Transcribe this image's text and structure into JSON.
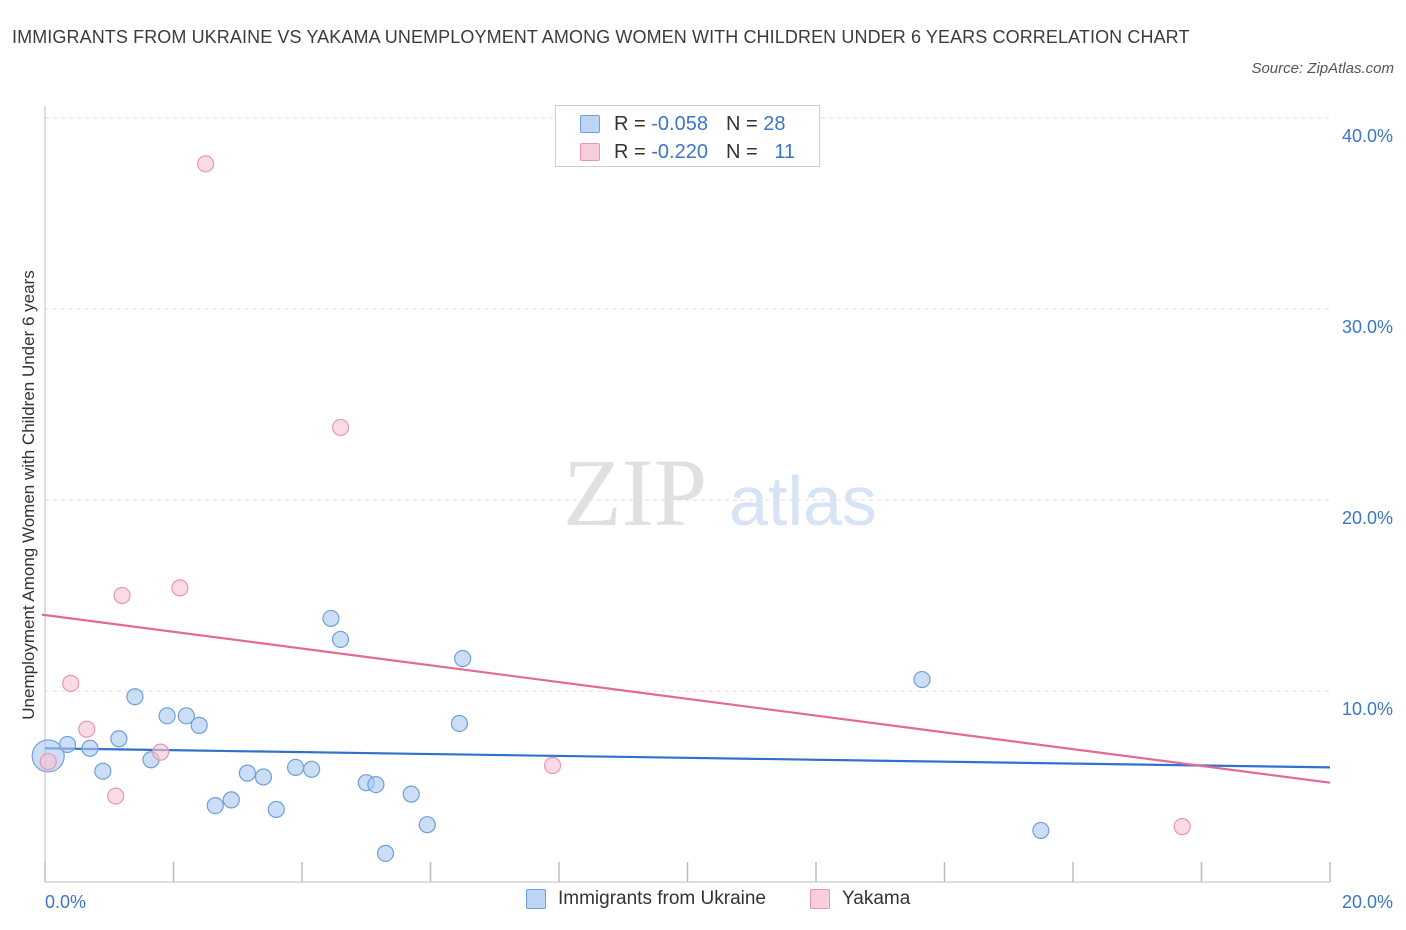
{
  "title": "IMMIGRANTS FROM UKRAINE VS YAKAMA UNEMPLOYMENT AMONG WOMEN WITH CHILDREN UNDER 6 YEARS CORRELATION CHART",
  "source": "Source: ZipAtlas.com",
  "watermark": {
    "zip": "ZIP",
    "atlas": "atlas"
  },
  "legend": {
    "rows": [
      {
        "r_label": "R =",
        "r_value": "-0.058",
        "n_label": "N =",
        "n_value": "28"
      },
      {
        "r_label": "R =",
        "r_value": "-0.220",
        "n_label": "N =",
        "n_value": "11"
      }
    ]
  },
  "chart_data": {
    "type": "scatter",
    "xlabel": "",
    "ylabel": "Unemployment Among Women with Children Under 6 years",
    "xlim": [
      0,
      20
    ],
    "ylim": [
      0,
      40
    ],
    "x_tick_labels": [
      "0.0%",
      "20.0%"
    ],
    "y_ticks": [
      10,
      20,
      30,
      40
    ],
    "y_tick_labels": [
      "10.0%",
      "20.0%",
      "30.0%",
      "40.0%"
    ],
    "grid": true,
    "series": [
      {
        "name": "Immigrants from Ukraine",
        "color": "#a9c8f0",
        "stroke": "#6f9fd8",
        "line_color": "#2f72cc",
        "trend": {
          "x": [
            0,
            20
          ],
          "y": [
            7.0,
            6.0
          ]
        },
        "points": [
          {
            "x": 0.05,
            "y": 6.6,
            "big": true
          },
          {
            "x": 0.35,
            "y": 7.2
          },
          {
            "x": 0.7,
            "y": 7.0
          },
          {
            "x": 0.9,
            "y": 5.8
          },
          {
            "x": 1.15,
            "y": 7.5
          },
          {
            "x": 1.4,
            "y": 9.7
          },
          {
            "x": 1.65,
            "y": 6.4
          },
          {
            "x": 1.9,
            "y": 8.7
          },
          {
            "x": 2.2,
            "y": 8.7
          },
          {
            "x": 2.4,
            "y": 8.2
          },
          {
            "x": 2.65,
            "y": 4.0
          },
          {
            "x": 2.9,
            "y": 4.3
          },
          {
            "x": 3.15,
            "y": 5.7
          },
          {
            "x": 3.4,
            "y": 5.5
          },
          {
            "x": 3.6,
            "y": 3.8
          },
          {
            "x": 3.9,
            "y": 6.0
          },
          {
            "x": 4.15,
            "y": 5.9
          },
          {
            "x": 4.45,
            "y": 13.8
          },
          {
            "x": 4.6,
            "y": 12.7
          },
          {
            "x": 5.0,
            "y": 5.2
          },
          {
            "x": 5.15,
            "y": 5.1
          },
          {
            "x": 5.3,
            "y": 1.5
          },
          {
            "x": 5.7,
            "y": 4.6
          },
          {
            "x": 5.95,
            "y": 3.0
          },
          {
            "x": 6.45,
            "y": 8.3
          },
          {
            "x": 6.5,
            "y": 11.7
          },
          {
            "x": 13.65,
            "y": 10.6
          },
          {
            "x": 15.5,
            "y": 2.7
          }
        ]
      },
      {
        "name": "Yakama",
        "color": "#f7c3d3",
        "stroke": "#e996b0",
        "line_color": "#e36a96",
        "trend": {
          "x": [
            -0.05,
            20
          ],
          "y": [
            14.0,
            5.2
          ]
        },
        "points": [
          {
            "x": 0.05,
            "y": 6.3
          },
          {
            "x": 0.4,
            "y": 10.4
          },
          {
            "x": 0.65,
            "y": 8.0
          },
          {
            "x": 1.1,
            "y": 4.5
          },
          {
            "x": 1.2,
            "y": 15.0
          },
          {
            "x": 1.8,
            "y": 6.8
          },
          {
            "x": 2.1,
            "y": 15.4
          },
          {
            "x": 2.5,
            "y": 37.6
          },
          {
            "x": 4.6,
            "y": 23.8
          },
          {
            "x": 7.9,
            "y": 6.1
          },
          {
            "x": 17.7,
            "y": 2.9
          }
        ]
      }
    ]
  }
}
